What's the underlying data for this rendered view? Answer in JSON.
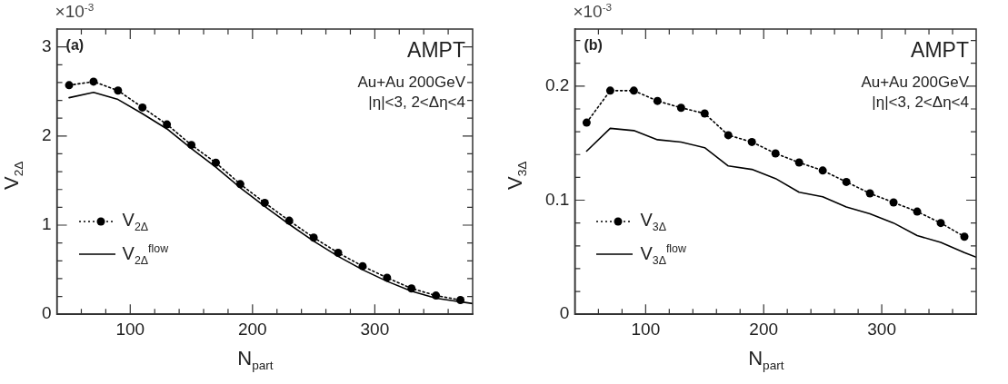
{
  "chart_data": [
    {
      "type": "line",
      "xlabel": "N$_{part}$",
      "ylabel": "V$_{2Δ}$",
      "annotations": [
        "(a)",
        "AMPT",
        "Au+Au 200GeV",
        "|η|<3, 2<Δη<4",
        "×10$^{-3}$"
      ],
      "xlim": [
        40,
        380
      ],
      "xticks": [
        {
          "value": 60,
          "label": null
        },
        {
          "value": 80,
          "label": null
        },
        100,
        {
          "value": 120,
          "label": null
        },
        {
          "value": 140,
          "label": null
        },
        {
          "value": 160,
          "label": null
        },
        {
          "value": 180,
          "label": null
        },
        200,
        {
          "value": 220,
          "label": null
        },
        {
          "value": 240,
          "label": null
        },
        {
          "value": 260,
          "label": null
        },
        {
          "value": 280,
          "label": null
        },
        300,
        {
          "value": 320,
          "label": null
        },
        {
          "value": 340,
          "label": null
        },
        {
          "value": 360,
          "label": null
        }
      ],
      "ylim": [
        0,
        3.2
      ],
      "yticks": [
        0,
        {
          "value": 0.2,
          "label": null
        },
        {
          "value": 0.4,
          "label": null
        },
        {
          "value": 0.6,
          "label": null
        },
        {
          "value": 0.8,
          "label": null
        },
        1,
        {
          "value": 1.2,
          "label": null
        },
        {
          "value": 1.4,
          "label": null
        },
        {
          "value": 1.6,
          "label": null
        },
        {
          "value": 1.8,
          "label": null
        },
        2,
        {
          "value": 2.2,
          "label": null
        },
        {
          "value": 2.4,
          "label": null
        },
        {
          "value": 2.6,
          "label": null
        },
        {
          "value": 2.8,
          "label": null
        },
        3
      ],
      "grid": false,
      "legend": "bottom left",
      "series": [
        {
          "name": "V$_{2Δ}$",
          "color": "#000000",
          "marker": "circle",
          "line_style": "dotted",
          "x": [
            50,
            70,
            90,
            110,
            130,
            150,
            170,
            190,
            210,
            230,
            250,
            270,
            290,
            310,
            330,
            350,
            370
          ],
          "values": [
            2.57,
            2.61,
            2.51,
            2.32,
            2.13,
            1.9,
            1.7,
            1.46,
            1.25,
            1.05,
            0.86,
            0.69,
            0.54,
            0.41,
            0.29,
            0.21,
            0.16
          ]
        },
        {
          "name": "V$_{2Δ}$$^{flow}$",
          "color": "#000000",
          "marker": "none",
          "line_style": "solid",
          "x": [
            50,
            70,
            90,
            110,
            130,
            150,
            170,
            190,
            210,
            230,
            250,
            270,
            290,
            310,
            330,
            350,
            380
          ],
          "values": [
            2.43,
            2.49,
            2.41,
            2.25,
            2.08,
            1.86,
            1.65,
            1.42,
            1.21,
            1.01,
            0.82,
            0.65,
            0.5,
            0.37,
            0.26,
            0.18,
            0.12
          ]
        }
      ]
    },
    {
      "type": "line",
      "xlabel": "N$_{part}$",
      "ylabel": "V$_{3Δ}$",
      "annotations": [
        "(b)",
        "AMPT",
        "Au+Au 200GeV",
        "|η|<3, 2<Δη<4",
        "×10$^{-3}$"
      ],
      "xlim": [
        40,
        380
      ],
      "xticks": [
        {
          "value": 60,
          "label": null
        },
        {
          "value": 80,
          "label": null
        },
        100,
        {
          "value": 120,
          "label": null
        },
        {
          "value": 140,
          "label": null
        },
        {
          "value": 160,
          "label": null
        },
        {
          "value": 180,
          "label": null
        },
        200,
        {
          "value": 220,
          "label": null
        },
        {
          "value": 240,
          "label": null
        },
        {
          "value": 260,
          "label": null
        },
        {
          "value": 280,
          "label": null
        },
        300,
        {
          "value": 320,
          "label": null
        },
        {
          "value": 340,
          "label": null
        },
        {
          "value": 360,
          "label": null
        }
      ],
      "ylim": [
        0,
        0.25
      ],
      "yticks": [
        0,
        {
          "value": 0.02,
          "label": null
        },
        {
          "value": 0.04,
          "label": null
        },
        {
          "value": 0.06,
          "label": null
        },
        {
          "value": 0.08,
          "label": null
        },
        0.1,
        {
          "value": 0.12,
          "label": null
        },
        {
          "value": 0.14,
          "label": null
        },
        {
          "value": 0.16,
          "label": null
        },
        {
          "value": 0.18,
          "label": null
        },
        0.2,
        {
          "value": 0.22,
          "label": null
        },
        {
          "value": 0.24,
          "label": null
        }
      ],
      "grid": false,
      "legend": "bottom left",
      "series": [
        {
          "name": "V$_{3Δ}$",
          "color": "#000000",
          "marker": "circle",
          "line_style": "dotted",
          "x": [
            50,
            70,
            90,
            110,
            130,
            150,
            170,
            190,
            210,
            230,
            250,
            270,
            290,
            310,
            330,
            350,
            370
          ],
          "values": [
            0.168,
            0.196,
            0.196,
            0.187,
            0.181,
            0.176,
            0.157,
            0.151,
            0.141,
            0.133,
            0.126,
            0.116,
            0.106,
            0.098,
            0.09,
            0.08,
            0.068
          ]
        },
        {
          "name": "V$_{3Δ}$$^{flow}$",
          "color": "#000000",
          "marker": "none",
          "line_style": "solid",
          "x": [
            50,
            70,
            90,
            110,
            130,
            150,
            170,
            190,
            210,
            230,
            250,
            270,
            290,
            310,
            330,
            350,
            370,
            380
          ],
          "values": [
            0.143,
            0.163,
            0.161,
            0.153,
            0.151,
            0.146,
            0.13,
            0.127,
            0.119,
            0.107,
            0.103,
            0.094,
            0.088,
            0.08,
            0.069,
            0.063,
            0.054,
            0.05
          ]
        }
      ]
    }
  ]
}
